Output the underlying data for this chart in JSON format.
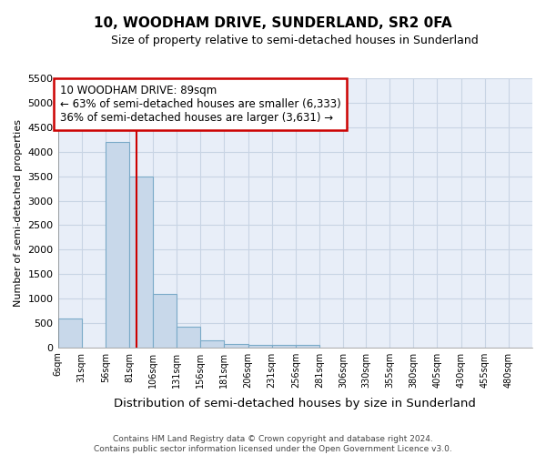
{
  "title1": "10, WOODHAM DRIVE, SUNDERLAND, SR2 0FA",
  "title2": "Size of property relative to semi-detached houses in Sunderland",
  "xlabel": "Distribution of semi-detached houses by size in Sunderland",
  "ylabel": "Number of semi-detached properties",
  "footnote": "Contains HM Land Registry data © Crown copyright and database right 2024.\nContains public sector information licensed under the Open Government Licence v3.0.",
  "property_label": "10 WOODHAM DRIVE: 89sqm",
  "pct_smaller": "63% of semi-detached houses are smaller (6,333)",
  "pct_larger": "36% of semi-detached houses are larger (3,631)",
  "property_sqm": 89,
  "bin_edges": [
    6,
    31,
    56,
    81,
    106,
    131,
    156,
    181,
    206,
    231,
    256,
    281,
    306,
    330,
    355,
    380,
    405,
    430,
    455,
    480,
    505
  ],
  "bar_values": [
    590,
    0,
    4200,
    3500,
    1100,
    420,
    140,
    70,
    55,
    55,
    55,
    0,
    0,
    0,
    0,
    0,
    0,
    0,
    0,
    0
  ],
  "bar_color": "#c8d8ea",
  "bar_edge_color": "#7aaac8",
  "vline_color": "#cc0000",
  "vline_x": 89,
  "ylim": [
    0,
    5500
  ],
  "yticks": [
    0,
    500,
    1000,
    1500,
    2000,
    2500,
    3000,
    3500,
    4000,
    4500,
    5000,
    5500
  ],
  "box_edge_color": "#cc0000",
  "grid_color": "#c8d4e4",
  "bg_color": "#e8eef8"
}
